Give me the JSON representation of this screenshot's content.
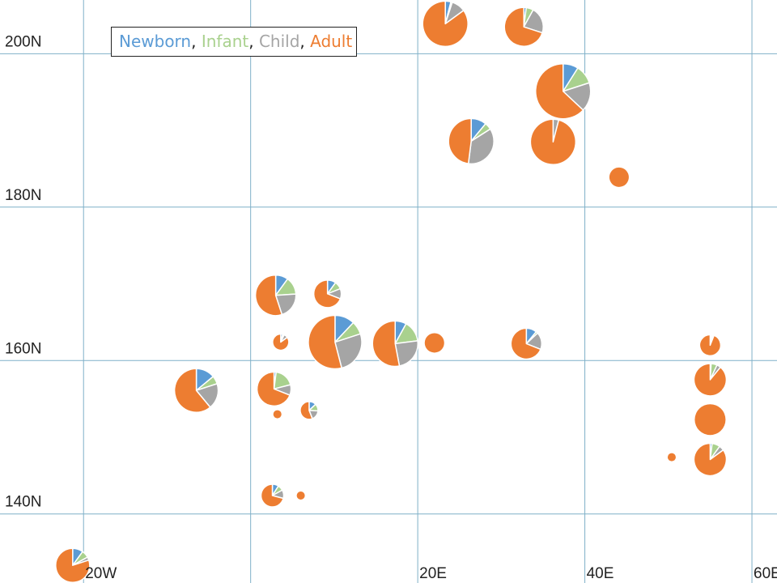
{
  "colors": {
    "grid": "#7fb0c8",
    "newborn": "#5b9bd5",
    "infant": "#a9d18e",
    "child": "#a5a5a5",
    "adult": "#ed7d31",
    "slice_border": "#ffffff"
  },
  "chart_data": {
    "type": "pie-map",
    "grid": true,
    "legend_position": "top-left",
    "legend": [
      "Newborn",
      "Infant",
      "Child",
      "Adult"
    ],
    "legend_separators": [
      ",",
      ",",
      ","
    ],
    "series": [
      "Newborn",
      "Infant",
      "Child",
      "Adult"
    ],
    "xlim": [
      -30,
      63
    ],
    "ylim": [
      131,
      207
    ],
    "x_ticks": [
      {
        "value": -20,
        "label": "20W"
      },
      {
        "value": 0,
        "label": ""
      },
      {
        "value": 20,
        "label": "20E"
      },
      {
        "value": 40,
        "label": "40E"
      },
      {
        "value": 60,
        "label": "60E"
      }
    ],
    "y_ticks": [
      {
        "value": 200,
        "label": "200N"
      },
      {
        "value": 180,
        "label": "180N"
      },
      {
        "value": 160,
        "label": "160N"
      },
      {
        "value": 140,
        "label": "140N"
      }
    ],
    "pies": [
      {
        "x": -21.3,
        "y": 133.3,
        "size": 21,
        "values": [
          10,
          7,
          3,
          80
        ]
      },
      {
        "x": 23.3,
        "y": 203.9,
        "size": 28,
        "values": [
          4,
          1,
          10,
          85
        ]
      },
      {
        "x": 32.7,
        "y": 203.5,
        "size": 24,
        "values": [
          2,
          6,
          22,
          70
        ]
      },
      {
        "x": 37.4,
        "y": 195.1,
        "size": 34,
        "values": [
          9,
          11,
          17,
          63
        ]
      },
      {
        "x": 26.4,
        "y": 188.6,
        "size": 28,
        "values": [
          11,
          5,
          36,
          48
        ]
      },
      {
        "x": 36.2,
        "y": 188.5,
        "size": 28,
        "values": [
          0,
          0,
          4,
          96
        ]
      },
      {
        "x": 44.1,
        "y": 183.9,
        "size": 12,
        "values": [
          0,
          0,
          0,
          100
        ]
      },
      {
        "x": 3.0,
        "y": 168.5,
        "size": 25,
        "values": [
          10,
          14,
          21,
          55
        ]
      },
      {
        "x": 9.2,
        "y": 168.7,
        "size": 17,
        "values": [
          10,
          9,
          12,
          69
        ]
      },
      {
        "x": 3.6,
        "y": 162.4,
        "size": 10,
        "values": [
          4,
          3,
          8,
          85
        ]
      },
      {
        "x": 10.1,
        "y": 162.4,
        "size": 33,
        "values": [
          12,
          8,
          26,
          54
        ]
      },
      {
        "x": 17.3,
        "y": 162.2,
        "size": 28,
        "values": [
          8,
          15,
          24,
          53
        ]
      },
      {
        "x": 22.0,
        "y": 162.3,
        "size": 12,
        "values": [
          0,
          0,
          0,
          100
        ]
      },
      {
        "x": 33.0,
        "y": 162.2,
        "size": 19,
        "values": [
          11,
          2,
          18,
          69
        ]
      },
      {
        "x": 55.0,
        "y": 162.0,
        "size": 13,
        "values": [
          2,
          2,
          2,
          94
        ]
      },
      {
        "x": -6.5,
        "y": 156.1,
        "size": 27,
        "values": [
          14,
          6,
          19,
          61
        ]
      },
      {
        "x": 2.8,
        "y": 156.3,
        "size": 21,
        "values": [
          2,
          19,
          10,
          69
        ]
      },
      {
        "x": 7.0,
        "y": 153.5,
        "size": 11,
        "values": [
          13,
          13,
          18,
          56
        ]
      },
      {
        "x": 3.2,
        "y": 153.0,
        "size": 5,
        "values": [
          0,
          0,
          0,
          100
        ]
      },
      {
        "x": 55.0,
        "y": 157.5,
        "size": 20,
        "values": [
          1,
          6,
          4,
          89
        ]
      },
      {
        "x": 55.0,
        "y": 152.3,
        "size": 19,
        "values": [
          0,
          0,
          0,
          100
        ]
      },
      {
        "x": 50.4,
        "y": 147.4,
        "size": 5,
        "values": [
          0,
          0,
          0,
          100
        ]
      },
      {
        "x": 55.0,
        "y": 147.1,
        "size": 20,
        "values": [
          2,
          8,
          5,
          85
        ]
      },
      {
        "x": 2.6,
        "y": 142.4,
        "size": 14,
        "values": [
          9,
          8,
          12,
          71
        ]
      },
      {
        "x": 6.0,
        "y": 142.4,
        "size": 5,
        "values": [
          0,
          0,
          0,
          100
        ]
      }
    ]
  }
}
